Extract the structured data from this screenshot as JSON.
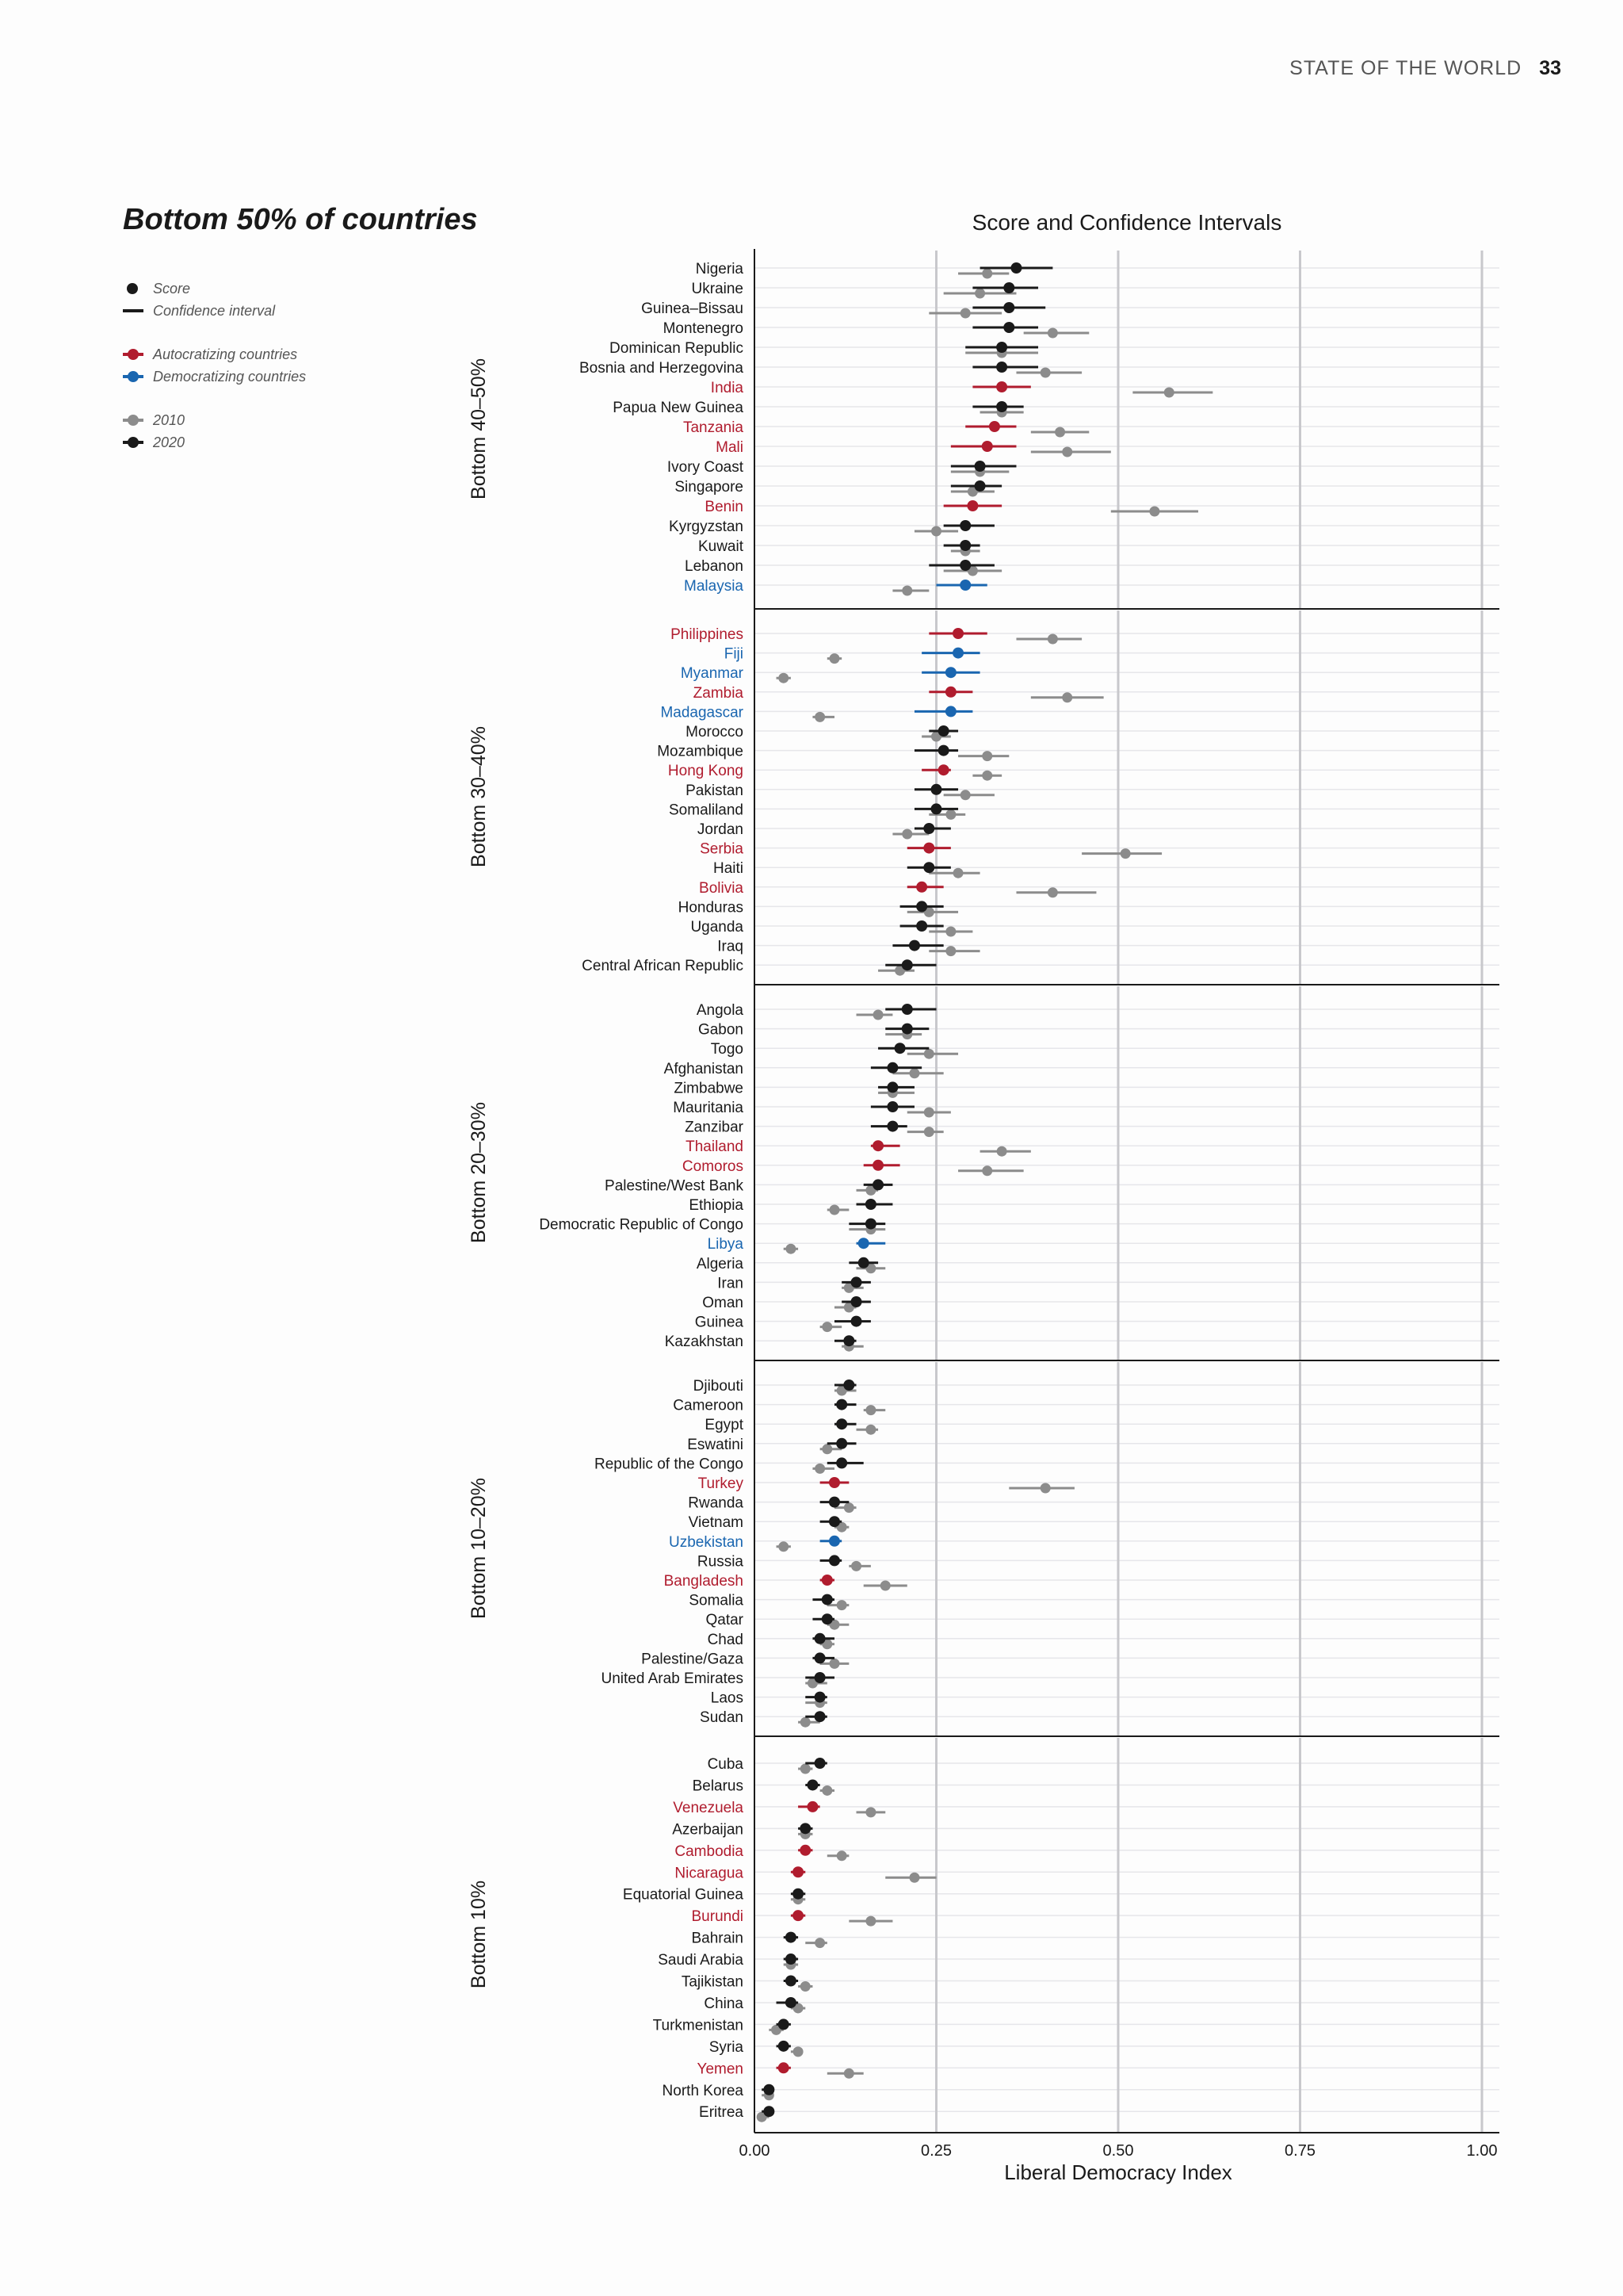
{
  "page": {
    "section": "STATE OF THE WORLD",
    "page_number": "33"
  },
  "section_title": "Bottom 50% of countries",
  "legend": {
    "score": "Score",
    "ci": "Confidence interval",
    "autocratizing": "Autocratizing countries",
    "democratizing": "Democratizing countries",
    "y2010": "2010",
    "y2020": "2020"
  },
  "colors": {
    "score_2020": "#1a1a1a",
    "score_2010": "#8c8c8c",
    "autocratizing": "#b01c2e",
    "democratizing": "#1a66b0",
    "grid": "#c8c8cc"
  },
  "chart_data": {
    "type": "scatter",
    "title": "Score and Confidence Intervals",
    "xlabel": "Liberal Democracy Index",
    "xlim": [
      0,
      1
    ],
    "xticks": [
      "0.00",
      "0.25",
      "0.50",
      "0.75",
      "1.00"
    ],
    "series_keys": [
      "2020",
      "2010"
    ],
    "panels": [
      {
        "name": "Bottom 40–50%",
        "countries": [
          {
            "name": "Nigeria",
            "s": 0.36,
            "lo": 0.31,
            "hi": 0.41,
            "s10": 0.32,
            "lo10": 0.28,
            "hi10": 0.35
          },
          {
            "name": "Ukraine",
            "s": 0.35,
            "lo": 0.3,
            "hi": 0.39,
            "s10": 0.31,
            "lo10": 0.26,
            "hi10": 0.36
          },
          {
            "name": "Guinea–Bissau",
            "s": 0.35,
            "lo": 0.3,
            "hi": 0.4,
            "s10": 0.29,
            "lo10": 0.24,
            "hi10": 0.34
          },
          {
            "name": "Montenegro",
            "s": 0.35,
            "lo": 0.3,
            "hi": 0.39,
            "s10": 0.41,
            "lo10": 0.37,
            "hi10": 0.46
          },
          {
            "name": "Dominican Republic",
            "s": 0.34,
            "lo": 0.29,
            "hi": 0.39,
            "s10": 0.34,
            "lo10": 0.29,
            "hi10": 0.39
          },
          {
            "name": "Bosnia and Herzegovina",
            "s": 0.34,
            "lo": 0.3,
            "hi": 0.39,
            "s10": 0.4,
            "lo10": 0.36,
            "hi10": 0.45
          },
          {
            "name": "India",
            "s": 0.34,
            "lo": 0.3,
            "hi": 0.38,
            "s10": 0.57,
            "lo10": 0.52,
            "hi10": 0.63,
            "status": "aut"
          },
          {
            "name": "Papua New Guinea",
            "s": 0.34,
            "lo": 0.3,
            "hi": 0.37,
            "s10": 0.34,
            "lo10": 0.31,
            "hi10": 0.37
          },
          {
            "name": "Tanzania",
            "s": 0.33,
            "lo": 0.29,
            "hi": 0.36,
            "s10": 0.42,
            "lo10": 0.38,
            "hi10": 0.46,
            "status": "aut"
          },
          {
            "name": "Mali",
            "s": 0.32,
            "lo": 0.27,
            "hi": 0.36,
            "s10": 0.43,
            "lo10": 0.38,
            "hi10": 0.49,
            "status": "aut"
          },
          {
            "name": "Ivory Coast",
            "s": 0.31,
            "lo": 0.27,
            "hi": 0.36,
            "s10": 0.31,
            "lo10": 0.27,
            "hi10": 0.35
          },
          {
            "name": "Singapore",
            "s": 0.31,
            "lo": 0.27,
            "hi": 0.34,
            "s10": 0.3,
            "lo10": 0.27,
            "hi10": 0.33
          },
          {
            "name": "Benin",
            "s": 0.3,
            "lo": 0.26,
            "hi": 0.34,
            "s10": 0.55,
            "lo10": 0.49,
            "hi10": 0.61,
            "status": "aut"
          },
          {
            "name": "Kyrgyzstan",
            "s": 0.29,
            "lo": 0.26,
            "hi": 0.33,
            "s10": 0.25,
            "lo10": 0.22,
            "hi10": 0.28
          },
          {
            "name": "Kuwait",
            "s": 0.29,
            "lo": 0.26,
            "hi": 0.31,
            "s10": 0.29,
            "lo10": 0.27,
            "hi10": 0.31
          },
          {
            "name": "Lebanon",
            "s": 0.29,
            "lo": 0.24,
            "hi": 0.33,
            "s10": 0.3,
            "lo10": 0.26,
            "hi10": 0.34
          },
          {
            "name": "Malaysia",
            "s": 0.29,
            "lo": 0.25,
            "hi": 0.32,
            "s10": 0.21,
            "lo10": 0.19,
            "hi10": 0.24,
            "status": "dem"
          }
        ]
      },
      {
        "name": "Bottom 30–40%",
        "countries": [
          {
            "name": "Philippines",
            "s": 0.28,
            "lo": 0.24,
            "hi": 0.32,
            "s10": 0.41,
            "lo10": 0.36,
            "hi10": 0.45,
            "status": "aut"
          },
          {
            "name": "Fiji",
            "s": 0.28,
            "lo": 0.23,
            "hi": 0.31,
            "s10": 0.11,
            "lo10": 0.1,
            "hi10": 0.12,
            "status": "dem"
          },
          {
            "name": "Myanmar",
            "s": 0.27,
            "lo": 0.23,
            "hi": 0.31,
            "s10": 0.04,
            "lo10": 0.03,
            "hi10": 0.05,
            "status": "dem"
          },
          {
            "name": "Zambia",
            "s": 0.27,
            "lo": 0.24,
            "hi": 0.3,
            "s10": 0.43,
            "lo10": 0.38,
            "hi10": 0.48,
            "status": "aut"
          },
          {
            "name": "Madagascar",
            "s": 0.27,
            "lo": 0.22,
            "hi": 0.3,
            "s10": 0.09,
            "lo10": 0.08,
            "hi10": 0.11,
            "status": "dem"
          },
          {
            "name": "Morocco",
            "s": 0.26,
            "lo": 0.24,
            "hi": 0.28,
            "s10": 0.25,
            "lo10": 0.23,
            "hi10": 0.27
          },
          {
            "name": "Mozambique",
            "s": 0.26,
            "lo": 0.22,
            "hi": 0.28,
            "s10": 0.32,
            "lo10": 0.28,
            "hi10": 0.35
          },
          {
            "name": "Hong Kong",
            "s": 0.26,
            "lo": 0.23,
            "hi": 0.27,
            "s10": 0.32,
            "lo10": 0.3,
            "hi10": 0.34,
            "status": "aut"
          },
          {
            "name": "Pakistan",
            "s": 0.25,
            "lo": 0.22,
            "hi": 0.28,
            "s10": 0.29,
            "lo10": 0.26,
            "hi10": 0.33
          },
          {
            "name": "Somaliland",
            "s": 0.25,
            "lo": 0.22,
            "hi": 0.28,
            "s10": 0.27,
            "lo10": 0.24,
            "hi10": 0.29
          },
          {
            "name": "Jordan",
            "s": 0.24,
            "lo": 0.22,
            "hi": 0.27,
            "s10": 0.21,
            "lo10": 0.19,
            "hi10": 0.24
          },
          {
            "name": "Serbia",
            "s": 0.24,
            "lo": 0.21,
            "hi": 0.27,
            "s10": 0.51,
            "lo10": 0.45,
            "hi10": 0.56,
            "status": "aut"
          },
          {
            "name": "Haiti",
            "s": 0.24,
            "lo": 0.21,
            "hi": 0.27,
            "s10": 0.28,
            "lo10": 0.24,
            "hi10": 0.31
          },
          {
            "name": "Bolivia",
            "s": 0.23,
            "lo": 0.21,
            "hi": 0.26,
            "s10": 0.41,
            "lo10": 0.36,
            "hi10": 0.47,
            "status": "aut"
          },
          {
            "name": "Honduras",
            "s": 0.23,
            "lo": 0.2,
            "hi": 0.26,
            "s10": 0.24,
            "lo10": 0.21,
            "hi10": 0.28
          },
          {
            "name": "Uganda",
            "s": 0.23,
            "lo": 0.2,
            "hi": 0.26,
            "s10": 0.27,
            "lo10": 0.24,
            "hi10": 0.3
          },
          {
            "name": "Iraq",
            "s": 0.22,
            "lo": 0.19,
            "hi": 0.26,
            "s10": 0.27,
            "lo10": 0.24,
            "hi10": 0.31
          },
          {
            "name": "Central African Republic",
            "s": 0.21,
            "lo": 0.18,
            "hi": 0.25,
            "s10": 0.2,
            "lo10": 0.17,
            "hi10": 0.22
          }
        ]
      },
      {
        "name": "Bottom 20–30%",
        "countries": [
          {
            "name": "Angola",
            "s": 0.21,
            "lo": 0.18,
            "hi": 0.25,
            "s10": 0.17,
            "lo10": 0.14,
            "hi10": 0.19
          },
          {
            "name": "Gabon",
            "s": 0.21,
            "lo": 0.18,
            "hi": 0.24,
            "s10": 0.21,
            "lo10": 0.18,
            "hi10": 0.23
          },
          {
            "name": "Togo",
            "s": 0.2,
            "lo": 0.17,
            "hi": 0.24,
            "s10": 0.24,
            "lo10": 0.21,
            "hi10": 0.28
          },
          {
            "name": "Afghanistan",
            "s": 0.19,
            "lo": 0.16,
            "hi": 0.23,
            "s10": 0.22,
            "lo10": 0.19,
            "hi10": 0.26
          },
          {
            "name": "Zimbabwe",
            "s": 0.19,
            "lo": 0.17,
            "hi": 0.22,
            "s10": 0.19,
            "lo10": 0.17,
            "hi10": 0.22
          },
          {
            "name": "Mauritania",
            "s": 0.19,
            "lo": 0.16,
            "hi": 0.22,
            "s10": 0.24,
            "lo10": 0.21,
            "hi10": 0.27
          },
          {
            "name": "Zanzibar",
            "s": 0.19,
            "lo": 0.16,
            "hi": 0.21,
            "s10": 0.24,
            "lo10": 0.21,
            "hi10": 0.26
          },
          {
            "name": "Thailand",
            "s": 0.17,
            "lo": 0.16,
            "hi": 0.2,
            "s10": 0.34,
            "lo10": 0.31,
            "hi10": 0.38,
            "status": "aut"
          },
          {
            "name": "Comoros",
            "s": 0.17,
            "lo": 0.15,
            "hi": 0.2,
            "s10": 0.32,
            "lo10": 0.28,
            "hi10": 0.37,
            "status": "aut"
          },
          {
            "name": "Palestine/West Bank",
            "s": 0.17,
            "lo": 0.15,
            "hi": 0.19,
            "s10": 0.16,
            "lo10": 0.14,
            "hi10": 0.17
          },
          {
            "name": "Ethiopia",
            "s": 0.16,
            "lo": 0.14,
            "hi": 0.19,
            "s10": 0.11,
            "lo10": 0.1,
            "hi10": 0.13
          },
          {
            "name": "Democratic Republic of Congo",
            "s": 0.16,
            "lo": 0.13,
            "hi": 0.18,
            "s10": 0.16,
            "lo10": 0.13,
            "hi10": 0.18
          },
          {
            "name": "Libya",
            "s": 0.15,
            "lo": 0.14,
            "hi": 0.18,
            "s10": 0.05,
            "lo10": 0.04,
            "hi10": 0.06,
            "status": "dem"
          },
          {
            "name": "Algeria",
            "s": 0.15,
            "lo": 0.13,
            "hi": 0.17,
            "s10": 0.16,
            "lo10": 0.14,
            "hi10": 0.18
          },
          {
            "name": "Iran",
            "s": 0.14,
            "lo": 0.12,
            "hi": 0.16,
            "s10": 0.13,
            "lo10": 0.12,
            "hi10": 0.15
          },
          {
            "name": "Oman",
            "s": 0.14,
            "lo": 0.12,
            "hi": 0.16,
            "s10": 0.13,
            "lo10": 0.11,
            "hi10": 0.14
          },
          {
            "name": "Guinea",
            "s": 0.14,
            "lo": 0.11,
            "hi": 0.16,
            "s10": 0.1,
            "lo10": 0.09,
            "hi10": 0.12
          },
          {
            "name": "Kazakhstan",
            "s": 0.13,
            "lo": 0.11,
            "hi": 0.14,
            "s10": 0.13,
            "lo10": 0.12,
            "hi10": 0.15
          }
        ]
      },
      {
        "name": "Bottom 10–20%",
        "countries": [
          {
            "name": "Djibouti",
            "s": 0.13,
            "lo": 0.11,
            "hi": 0.14,
            "s10": 0.12,
            "lo10": 0.11,
            "hi10": 0.14
          },
          {
            "name": "Cameroon",
            "s": 0.12,
            "lo": 0.11,
            "hi": 0.14,
            "s10": 0.16,
            "lo10": 0.15,
            "hi10": 0.18
          },
          {
            "name": "Egypt",
            "s": 0.12,
            "lo": 0.11,
            "hi": 0.14,
            "s10": 0.16,
            "lo10": 0.14,
            "hi10": 0.17
          },
          {
            "name": "Eswatini",
            "s": 0.12,
            "lo": 0.1,
            "hi": 0.14,
            "s10": 0.1,
            "lo10": 0.09,
            "hi10": 0.12
          },
          {
            "name": "Republic of the Congo",
            "s": 0.12,
            "lo": 0.1,
            "hi": 0.15,
            "s10": 0.09,
            "lo10": 0.08,
            "hi10": 0.11
          },
          {
            "name": "Turkey",
            "s": 0.11,
            "lo": 0.09,
            "hi": 0.13,
            "s10": 0.4,
            "lo10": 0.35,
            "hi10": 0.44,
            "status": "aut"
          },
          {
            "name": "Rwanda",
            "s": 0.11,
            "lo": 0.09,
            "hi": 0.13,
            "s10": 0.13,
            "lo10": 0.11,
            "hi10": 0.14
          },
          {
            "name": "Vietnam",
            "s": 0.11,
            "lo": 0.09,
            "hi": 0.12,
            "s10": 0.12,
            "lo10": 0.11,
            "hi10": 0.13
          },
          {
            "name": "Uzbekistan",
            "s": 0.11,
            "lo": 0.09,
            "hi": 0.12,
            "s10": 0.04,
            "lo10": 0.03,
            "hi10": 0.05,
            "status": "dem"
          },
          {
            "name": "Russia",
            "s": 0.11,
            "lo": 0.09,
            "hi": 0.12,
            "s10": 0.14,
            "lo10": 0.13,
            "hi10": 0.16
          },
          {
            "name": "Bangladesh",
            "s": 0.1,
            "lo": 0.09,
            "hi": 0.11,
            "s10": 0.18,
            "lo10": 0.15,
            "hi10": 0.21,
            "status": "aut"
          },
          {
            "name": "Somalia",
            "s": 0.1,
            "lo": 0.08,
            "hi": 0.11,
            "s10": 0.12,
            "lo10": 0.1,
            "hi10": 0.13
          },
          {
            "name": "Qatar",
            "s": 0.1,
            "lo": 0.08,
            "hi": 0.11,
            "s10": 0.11,
            "lo10": 0.1,
            "hi10": 0.13
          },
          {
            "name": "Chad",
            "s": 0.09,
            "lo": 0.08,
            "hi": 0.11,
            "s10": 0.1,
            "lo10": 0.09,
            "hi10": 0.11
          },
          {
            "name": "Palestine/Gaza",
            "s": 0.09,
            "lo": 0.08,
            "hi": 0.11,
            "s10": 0.11,
            "lo10": 0.09,
            "hi10": 0.13
          },
          {
            "name": "United Arab Emirates",
            "s": 0.09,
            "lo": 0.07,
            "hi": 0.11,
            "s10": 0.08,
            "lo10": 0.07,
            "hi10": 0.1
          },
          {
            "name": "Laos",
            "s": 0.09,
            "lo": 0.07,
            "hi": 0.1,
            "s10": 0.09,
            "lo10": 0.07,
            "hi10": 0.1
          },
          {
            "name": "Sudan",
            "s": 0.09,
            "lo": 0.07,
            "hi": 0.1,
            "s10": 0.07,
            "lo10": 0.06,
            "hi10": 0.09
          }
        ]
      },
      {
        "name": "Bottom 10%",
        "countries": [
          {
            "name": "Cuba",
            "s": 0.09,
            "lo": 0.07,
            "hi": 0.1,
            "s10": 0.07,
            "lo10": 0.06,
            "hi10": 0.08
          },
          {
            "name": "Belarus",
            "s": 0.08,
            "lo": 0.07,
            "hi": 0.09,
            "s10": 0.1,
            "lo10": 0.09,
            "hi10": 0.11
          },
          {
            "name": "Venezuela",
            "s": 0.08,
            "lo": 0.06,
            "hi": 0.09,
            "s10": 0.16,
            "lo10": 0.14,
            "hi10": 0.18,
            "status": "aut"
          },
          {
            "name": "Azerbaijan",
            "s": 0.07,
            "lo": 0.06,
            "hi": 0.08,
            "s10": 0.07,
            "lo10": 0.06,
            "hi10": 0.08
          },
          {
            "name": "Cambodia",
            "s": 0.07,
            "lo": 0.06,
            "hi": 0.08,
            "s10": 0.12,
            "lo10": 0.1,
            "hi10": 0.13,
            "status": "aut"
          },
          {
            "name": "Nicaragua",
            "s": 0.06,
            "lo": 0.05,
            "hi": 0.07,
            "s10": 0.22,
            "lo10": 0.18,
            "hi10": 0.25,
            "status": "aut"
          },
          {
            "name": "Equatorial Guinea",
            "s": 0.06,
            "lo": 0.05,
            "hi": 0.07,
            "s10": 0.06,
            "lo10": 0.05,
            "hi10": 0.07
          },
          {
            "name": "Burundi",
            "s": 0.06,
            "lo": 0.05,
            "hi": 0.07,
            "s10": 0.16,
            "lo10": 0.13,
            "hi10": 0.19,
            "status": "aut"
          },
          {
            "name": "Bahrain",
            "s": 0.05,
            "lo": 0.04,
            "hi": 0.06,
            "s10": 0.09,
            "lo10": 0.07,
            "hi10": 0.1
          },
          {
            "name": "Saudi Arabia",
            "s": 0.05,
            "lo": 0.04,
            "hi": 0.06,
            "s10": 0.05,
            "lo10": 0.04,
            "hi10": 0.06
          },
          {
            "name": "Tajikistan",
            "s": 0.05,
            "lo": 0.04,
            "hi": 0.06,
            "s10": 0.07,
            "lo10": 0.06,
            "hi10": 0.08
          },
          {
            "name": "China",
            "s": 0.05,
            "lo": 0.03,
            "hi": 0.06,
            "s10": 0.06,
            "lo10": 0.05,
            "hi10": 0.07
          },
          {
            "name": "Turkmenistan",
            "s": 0.04,
            "lo": 0.03,
            "hi": 0.05,
            "s10": 0.03,
            "lo10": 0.02,
            "hi10": 0.04
          },
          {
            "name": "Syria",
            "s": 0.04,
            "lo": 0.03,
            "hi": 0.05,
            "s10": 0.06,
            "lo10": 0.05,
            "hi10": 0.06
          },
          {
            "name": "Yemen",
            "s": 0.04,
            "lo": 0.03,
            "hi": 0.05,
            "s10": 0.13,
            "lo10": 0.1,
            "hi10": 0.15,
            "status": "aut"
          },
          {
            "name": "North Korea",
            "s": 0.02,
            "lo": 0.01,
            "hi": 0.02,
            "s10": 0.02,
            "lo10": 0.01,
            "hi10": 0.02
          },
          {
            "name": "Eritrea",
            "s": 0.02,
            "lo": 0.01,
            "hi": 0.02,
            "s10": 0.01,
            "lo10": 0.01,
            "hi10": 0.02
          }
        ]
      }
    ]
  }
}
